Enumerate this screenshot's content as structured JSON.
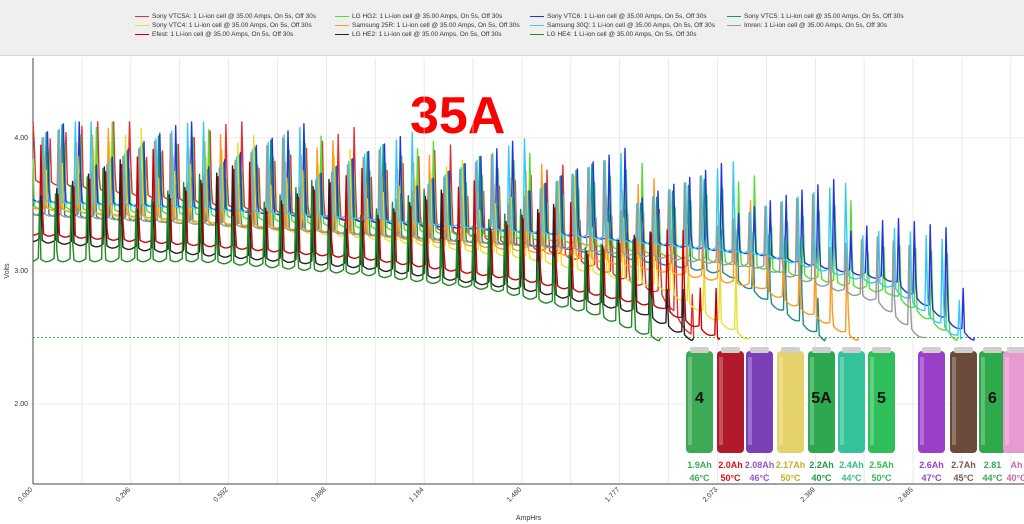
{
  "chart_data": {
    "type": "line",
    "title": "35A",
    "xlabel": "AmpHrs",
    "ylabel": "Volts",
    "xlim": [
      0,
      3.0
    ],
    "ylim": [
      1.4,
      4.6
    ],
    "x_ticks": [
      "0.000",
      "0.296",
      "0.592",
      "0.888",
      "1.184",
      "1.480",
      "1.777",
      "2.073",
      "2.369",
      "2.665"
    ],
    "y_ticks": [
      "2.00",
      "3.00",
      "4.00"
    ],
    "cutoff_voltage": 2.5,
    "grid": true,
    "legend_position": "top",
    "series": [
      {
        "name": "Sony VTC5A: 1 Li-ion cell @ 35.00 Amps, On 5s, Off 30s",
        "color": "#e03030",
        "capacity_ah": 2.0,
        "points": [
          [
            0,
            3.7
          ],
          [
            0.3,
            3.6
          ],
          [
            0.8,
            3.45
          ],
          [
            1.2,
            3.35
          ],
          [
            1.6,
            3.15
          ],
          [
            1.9,
            2.85
          ],
          [
            2.0,
            2.5
          ]
        ]
      },
      {
        "name": "LG HG2: 1 Li-ion cell @ 35.00 Amps, On 5s, Off 30s",
        "color": "#55dd33",
        "capacity_ah": 2.8,
        "points": [
          [
            0,
            3.5
          ],
          [
            0.5,
            3.45
          ],
          [
            1.0,
            3.35
          ],
          [
            1.6,
            3.25
          ],
          [
            2.2,
            3.05
          ],
          [
            2.6,
            2.85
          ],
          [
            2.8,
            2.5
          ]
        ]
      },
      {
        "name": "Sony VTC6: 1 Li-ion cell @ 35.00 Amps, On 5s, Off 30s",
        "color": "#2233dd",
        "capacity_ah": 2.8,
        "points": [
          [
            0,
            3.55
          ],
          [
            0.5,
            3.5
          ],
          [
            1.0,
            3.4
          ],
          [
            1.6,
            3.3
          ],
          [
            2.2,
            3.15
          ],
          [
            2.6,
            2.95
          ],
          [
            2.85,
            2.5
          ]
        ]
      },
      {
        "name": "Sony VTC5: 1 Li-ion cell @ 35.00 Amps, On 5s, Off 30s",
        "color": "#1e8a8a",
        "capacity_ah": 2.4,
        "points": [
          [
            0,
            3.45
          ],
          [
            0.5,
            3.38
          ],
          [
            1.0,
            3.3
          ],
          [
            1.6,
            3.2
          ],
          [
            2.1,
            3.0
          ],
          [
            2.4,
            2.5
          ]
        ]
      },
      {
        "name": "Sony VTC4: 1 Li-ion cell @ 35.00 Amps, On 5s, Off 30s",
        "color": "#e8e030",
        "capacity_ah": 2.17,
        "points": [
          [
            0,
            3.5
          ],
          [
            0.5,
            3.38
          ],
          [
            1.0,
            3.28
          ],
          [
            1.5,
            3.12
          ],
          [
            1.9,
            2.9
          ],
          [
            2.17,
            2.5
          ]
        ]
      },
      {
        "name": "Samsung 25R: 1 Li-ion cell @ 35.00 Amps, On 5s, Off 30s",
        "color": "#ff9922",
        "capacity_ah": 2.5,
        "points": [
          [
            0,
            3.5
          ],
          [
            0.5,
            3.4
          ],
          [
            1.0,
            3.3
          ],
          [
            1.6,
            3.15
          ],
          [
            2.2,
            2.9
          ],
          [
            2.5,
            2.5
          ]
        ]
      },
      {
        "name": "Samsung 30Q: 1 Li-ion cell @ 35.00 Amps, On 5s, Off 30s",
        "color": "#33ccee",
        "capacity_ah": 2.81,
        "points": [
          [
            0,
            3.55
          ],
          [
            0.5,
            3.5
          ],
          [
            1.0,
            3.42
          ],
          [
            1.6,
            3.3
          ],
          [
            2.2,
            3.15
          ],
          [
            2.6,
            2.9
          ],
          [
            2.81,
            2.5
          ]
        ]
      },
      {
        "name": "Imren: 1 Li-ion cell @ 35.00 Amps, On 5s, Off 30s",
        "color": "#999999",
        "capacity_ah": 2.7,
        "points": [
          [
            0,
            3.45
          ],
          [
            0.5,
            3.38
          ],
          [
            1.0,
            3.3
          ],
          [
            1.6,
            3.2
          ],
          [
            2.2,
            3.05
          ],
          [
            2.55,
            2.8
          ],
          [
            2.7,
            2.5
          ]
        ]
      },
      {
        "name": "Efest: 1 Li-ion cell @ 35.00 Amps, On 5s, Off 30s",
        "color": "#cc0000",
        "capacity_ah": 2.08,
        "points": [
          [
            0,
            3.3
          ],
          [
            0.5,
            3.22
          ],
          [
            1.0,
            3.12
          ],
          [
            1.5,
            2.95
          ],
          [
            1.9,
            2.75
          ],
          [
            2.08,
            2.5
          ]
        ]
      },
      {
        "name": "LG HE2: 1 Li-ion cell @ 35.00 Amps, On 5s, Off 30s",
        "color": "#222222",
        "capacity_ah": 2.0,
        "points": [
          [
            0,
            3.25
          ],
          [
            0.5,
            3.15
          ],
          [
            1.0,
            3.05
          ],
          [
            1.5,
            2.88
          ],
          [
            1.85,
            2.7
          ],
          [
            2.0,
            2.5
          ]
        ]
      },
      {
        "name": "LG HE4: 1 Li-ion cell @ 35.00 Amps, On 5s, Off 30s",
        "color": "#228822",
        "capacity_ah": 1.9,
        "points": [
          [
            0,
            3.1
          ],
          [
            0.5,
            3.1
          ],
          [
            1.0,
            3.0
          ],
          [
            1.4,
            2.88
          ],
          [
            1.7,
            2.7
          ],
          [
            1.9,
            2.5
          ]
        ]
      }
    ],
    "cells": [
      {
        "body": "#3daa55",
        "label": "4",
        "cap": "1.9Ah",
        "temp": "46°C",
        "cap_color": "#3daa55",
        "temp_color": "#3daa55"
      },
      {
        "body": "#b01a2a",
        "label": "",
        "cap": "2.0Ah",
        "temp": "50°C",
        "cap_color": "#dd1111",
        "temp_color": "#dd1111"
      },
      {
        "body": "#7b3fb8",
        "label": "",
        "cap": "2.08Ah",
        "temp": "46°C",
        "cap_color": "#9955cc",
        "temp_color": "#9955cc"
      },
      {
        "body": "#e6d26a",
        "label": "",
        "cap": "2.17Ah",
        "temp": "50°C",
        "cap_color": "#ccaa22",
        "temp_color": "#ccaa22"
      },
      {
        "body": "#2ea84e",
        "label": "5A",
        "cap": "2.2Ah",
        "temp": "40°C",
        "cap_color": "#229944",
        "temp_color": "#229944"
      },
      {
        "body": "#33c29a",
        "label": "",
        "cap": "2.4Ah",
        "temp": "44°C",
        "cap_color": "#33bb88",
        "temp_color": "#33bb88"
      },
      {
        "body": "#2fbf5a",
        "label": "5",
        "cap": "2.5Ah",
        "temp": "50°C",
        "cap_color": "#33bb55",
        "temp_color": "#33bb55"
      },
      {
        "body": "#9a3fc8",
        "label": "",
        "cap": "2.6Ah",
        "temp": "47°C",
        "cap_color": "#9944cc",
        "temp_color": "#9944cc"
      },
      {
        "body": "#6b4a3c",
        "label": "",
        "cap": "2.7Ah",
        "temp": "45°C",
        "cap_color": "#7a5a4a",
        "temp_color": "#7a5a4a"
      },
      {
        "body": "#2faa4a",
        "label": "6",
        "cap": "2.81",
        "temp": "44°C",
        "cap_color": "#33aa55",
        "temp_color": "#33aa55"
      },
      {
        "body": "#e79ad0",
        "label": "",
        "cap": "Ah",
        "temp": "40°C",
        "cap_color": "#cc66aa",
        "temp_color": "#cc66aa"
      }
    ],
    "cell_columns": [
      {
        "cap": 0,
        "temp": 0
      },
      {
        "cap": 1,
        "temp": 1
      },
      {
        "cap": 2,
        "temp": 2
      },
      {
        "cap": 3,
        "temp": 3
      },
      {
        "cap": 4,
        "temp": 4
      },
      {
        "cap": 5,
        "temp": 5
      },
      {
        "cap": 6,
        "temp": 6
      },
      {
        "cap": 7,
        "temp": 7
      },
      {
        "cap": 8,
        "temp": 8
      },
      {
        "cap": 9,
        "temp": 9
      },
      {
        "cap": 10,
        "temp": 10
      }
    ]
  }
}
